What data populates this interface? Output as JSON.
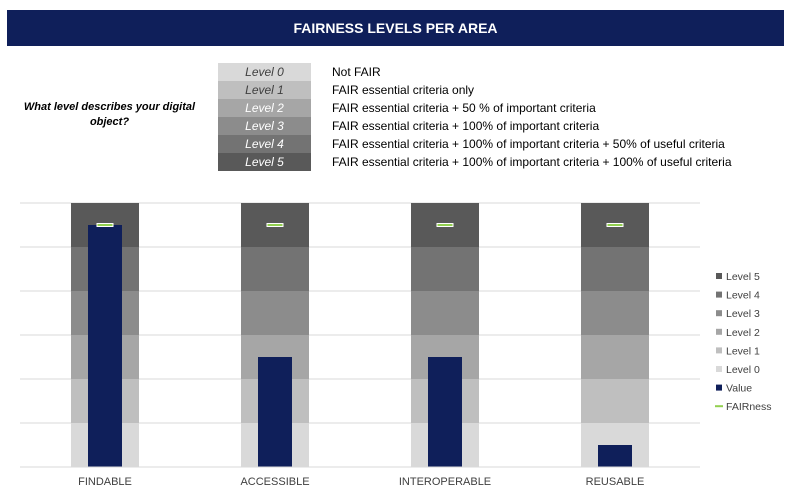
{
  "header": {
    "title": "FAIRNESS LEVELS PER AREA"
  },
  "question": "What level describes your digital object?",
  "levels": [
    {
      "label": "Level 0",
      "desc": "Not FAIR",
      "color": "#d9d9d9",
      "text_color": "#404040"
    },
    {
      "label": "Level 1",
      "desc": "FAIR essential criteria only",
      "color": "#bfbfbf",
      "text_color": "#404040"
    },
    {
      "label": "Level 2",
      "desc": "FAIR essential criteria + 50 % of important criteria",
      "color": "#a6a6a6",
      "text_color": "#ffffff"
    },
    {
      "label": "Level 3",
      "desc": "FAIR essential criteria + 100% of important criteria",
      "color": "#8c8c8c",
      "text_color": "#ffffff"
    },
    {
      "label": "Level 4",
      "desc": "FAIR essential criteria + 100% of important criteria + 50% of useful criteria",
      "color": "#737373",
      "text_color": "#ffffff"
    },
    {
      "label": "Level 5",
      "desc": "FAIR essential criteria + 100% of important criteria + 100% of useful criteria",
      "color": "#595959",
      "text_color": "#ffffff"
    }
  ],
  "chart_data": {
    "type": "bar",
    "categories": [
      "FINDABLE",
      "ACCESSIBLE",
      "INTEROPERABLE",
      "REUSABLE"
    ],
    "band_series": [
      {
        "name": "Level 0",
        "color": "#d9d9d9"
      },
      {
        "name": "Level 1",
        "color": "#bfbfbf"
      },
      {
        "name": "Level 2",
        "color": "#a6a6a6"
      },
      {
        "name": "Level 3",
        "color": "#8c8c8c"
      },
      {
        "name": "Level 4",
        "color": "#737373"
      },
      {
        "name": "Level 5",
        "color": "#595959"
      }
    ],
    "value_series": {
      "name": "Value",
      "color": "#0f1f5a",
      "values": [
        5.5,
        2.5,
        2.5,
        0.5
      ]
    },
    "fairness_series": {
      "name": "FAIRness",
      "color": "#92d050",
      "values": [
        5.5,
        5.5,
        5.5,
        5.5
      ]
    },
    "ylim": [
      0,
      6
    ],
    "grid": true,
    "legend_position": "right"
  }
}
